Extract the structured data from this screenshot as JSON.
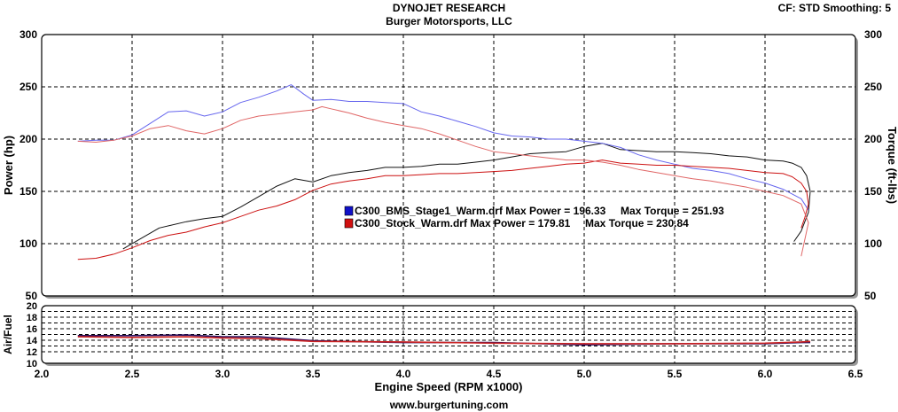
{
  "header": {
    "title": "DYNOJET RESEARCH",
    "subtitle": "Burger Motorsports, LLC",
    "cf_info": "CF: STD  Smoothing: 5"
  },
  "footer": {
    "url": "www.burgertuning.com"
  },
  "chart_data": [
    {
      "type": "line",
      "panel": "main",
      "title": "DYNOJET RESEARCH",
      "subtitle": "Burger Motorsports, LLC",
      "ylabel": "Power (hp)",
      "y2label": "Torque (ft-lbs)",
      "xlim": [
        2.0,
        6.5
      ],
      "ylim": [
        50,
        300
      ],
      "y2lim": [
        50,
        300
      ],
      "x_ticks": [
        2.0,
        2.5,
        3.0,
        3.5,
        4.0,
        4.5,
        5.0,
        5.5,
        6.0,
        6.5
      ],
      "y_ticks": [
        50,
        100,
        150,
        200,
        250,
        300
      ],
      "grid": true,
      "legend": [
        {
          "text": "C300_BMS_Stage1_Warm.drf Max Power = 196.33     Max Torque = 251.93",
          "color": "#1010c8"
        },
        {
          "text": "C300_Stock_Warm.drf Max Power = 179.81     Max Torque = 230.84",
          "color": "#d01010"
        }
      ],
      "series": [
        {
          "name": "C300_BMS_Stage1_Warm.drf",
          "measure": "power",
          "color": "#111111",
          "x": [
            2.45,
            2.55,
            2.65,
            2.8,
            2.9,
            3.0,
            3.1,
            3.2,
            3.3,
            3.4,
            3.5,
            3.6,
            3.7,
            3.8,
            3.9,
            4.0,
            4.1,
            4.2,
            4.3,
            4.4,
            4.5,
            4.6,
            4.7,
            4.8,
            4.9,
            5.0,
            5.1,
            5.2,
            5.3,
            5.4,
            5.5,
            5.6,
            5.7,
            5.8,
            5.9,
            6.0,
            6.1,
            6.15,
            6.2,
            6.23,
            6.25,
            6.24,
            6.2,
            6.16
          ],
          "y": [
            95,
            105,
            115,
            121,
            124,
            126,
            135,
            145,
            155,
            162,
            159,
            165,
            168,
            170,
            173,
            173,
            174,
            176,
            176,
            178,
            180,
            183,
            186,
            187,
            188,
            193,
            196,
            190,
            189,
            188,
            188,
            187,
            186,
            184,
            183,
            180,
            179,
            177,
            173,
            165,
            150,
            130,
            112,
            102
          ]
        },
        {
          "name": "C300_BMS_Stage1_Warm.drf",
          "measure": "torque",
          "color": "#6666ee",
          "x": [
            2.2,
            2.3,
            2.4,
            2.5,
            2.6,
            2.7,
            2.8,
            2.9,
            3.0,
            3.1,
            3.2,
            3.3,
            3.38,
            3.45,
            3.5,
            3.6,
            3.7,
            3.8,
            3.9,
            4.0,
            4.1,
            4.2,
            4.3,
            4.4,
            4.5,
            4.6,
            4.7,
            4.8,
            4.9,
            5.0,
            5.1,
            5.2,
            5.3,
            5.4,
            5.5,
            5.6,
            5.7,
            5.8,
            5.9,
            6.0,
            6.1,
            6.2,
            6.24
          ],
          "y": [
            198,
            199,
            199,
            204,
            215,
            226,
            227,
            222,
            226,
            235,
            240,
            246,
            252,
            243,
            237,
            238,
            236,
            236,
            235,
            234,
            226,
            222,
            217,
            212,
            206,
            203,
            202,
            200,
            200,
            198,
            196,
            192,
            185,
            180,
            176,
            172,
            170,
            167,
            162,
            158,
            152,
            143,
            132
          ]
        },
        {
          "name": "C300_Stock_Warm.drf",
          "measure": "power",
          "color": "#cc1111",
          "x": [
            2.2,
            2.3,
            2.4,
            2.5,
            2.6,
            2.7,
            2.8,
            2.9,
            3.0,
            3.1,
            3.2,
            3.3,
            3.4,
            3.5,
            3.6,
            3.7,
            3.8,
            3.9,
            4.0,
            4.1,
            4.2,
            4.3,
            4.4,
            4.5,
            4.6,
            4.7,
            4.8,
            4.9,
            5.0,
            5.1,
            5.2,
            5.3,
            5.4,
            5.5,
            5.6,
            5.7,
            5.8,
            5.9,
            6.0,
            6.1,
            6.15,
            6.2,
            6.23,
            6.24,
            6.22,
            6.2
          ],
          "y": [
            85,
            86,
            90,
            96,
            103,
            108,
            111,
            116,
            120,
            126,
            132,
            136,
            142,
            151,
            157,
            160,
            162,
            165,
            165,
            166,
            167,
            167,
            168,
            169,
            170,
            172,
            174,
            176,
            177,
            180,
            177,
            176,
            175,
            175,
            174,
            173,
            172,
            170,
            168,
            167,
            164,
            158,
            150,
            138,
            125,
            115
          ]
        },
        {
          "name": "C300_Stock_Warm.drf",
          "measure": "torque",
          "color": "#e06666",
          "x": [
            2.2,
            2.3,
            2.4,
            2.5,
            2.6,
            2.7,
            2.8,
            2.9,
            3.0,
            3.1,
            3.2,
            3.3,
            3.4,
            3.5,
            3.55,
            3.6,
            3.7,
            3.8,
            3.9,
            4.0,
            4.1,
            4.2,
            4.3,
            4.4,
            4.5,
            4.6,
            4.7,
            4.8,
            4.9,
            5.0,
            5.1,
            5.2,
            5.3,
            5.4,
            5.5,
            5.6,
            5.7,
            5.8,
            5.9,
            6.0,
            6.1,
            6.2,
            6.24,
            6.2
          ],
          "y": [
            198,
            197,
            199,
            203,
            210,
            213,
            208,
            205,
            210,
            218,
            222,
            224,
            226,
            228,
            231,
            229,
            225,
            220,
            216,
            213,
            210,
            205,
            199,
            193,
            188,
            186,
            184,
            182,
            180,
            180,
            178,
            175,
            171,
            168,
            165,
            162,
            160,
            157,
            154,
            150,
            146,
            138,
            120,
            88
          ]
        }
      ]
    },
    {
      "type": "line",
      "panel": "afr",
      "ylabel": "Air/Fuel",
      "xlabel": "Engine Speed (RPM x1000)",
      "xlim": [
        2.0,
        6.5
      ],
      "ylim": [
        10,
        20
      ],
      "x_ticks": [
        2.0,
        2.5,
        3.0,
        3.5,
        4.0,
        4.5,
        5.0,
        5.5,
        6.0,
        6.5
      ],
      "y_ticks": [
        10,
        12,
        14,
        16,
        18,
        20
      ],
      "grid": true,
      "series": [
        {
          "name": "C300_BMS_Stage1_Warm.drf",
          "color": "#2a1060",
          "x": [
            2.2,
            2.5,
            2.8,
            3.0,
            3.2,
            3.5,
            4.0,
            4.5,
            5.0,
            5.5,
            6.0,
            6.2,
            6.25
          ],
          "y": [
            14.8,
            14.8,
            14.9,
            14.6,
            14.6,
            13.9,
            13.6,
            13.6,
            13.2,
            13.4,
            13.4,
            13.6,
            13.6
          ]
        },
        {
          "name": "C300_Stock_Warm.drf",
          "color": "#cc2222",
          "x": [
            2.2,
            2.5,
            2.8,
            3.0,
            3.2,
            3.5,
            4.0,
            4.5,
            5.0,
            5.5,
            6.0,
            6.2,
            6.25
          ],
          "y": [
            14.6,
            14.5,
            14.6,
            14.4,
            14.3,
            13.8,
            13.7,
            13.5,
            13.4,
            13.4,
            13.5,
            13.7,
            13.8
          ]
        }
      ]
    }
  ]
}
